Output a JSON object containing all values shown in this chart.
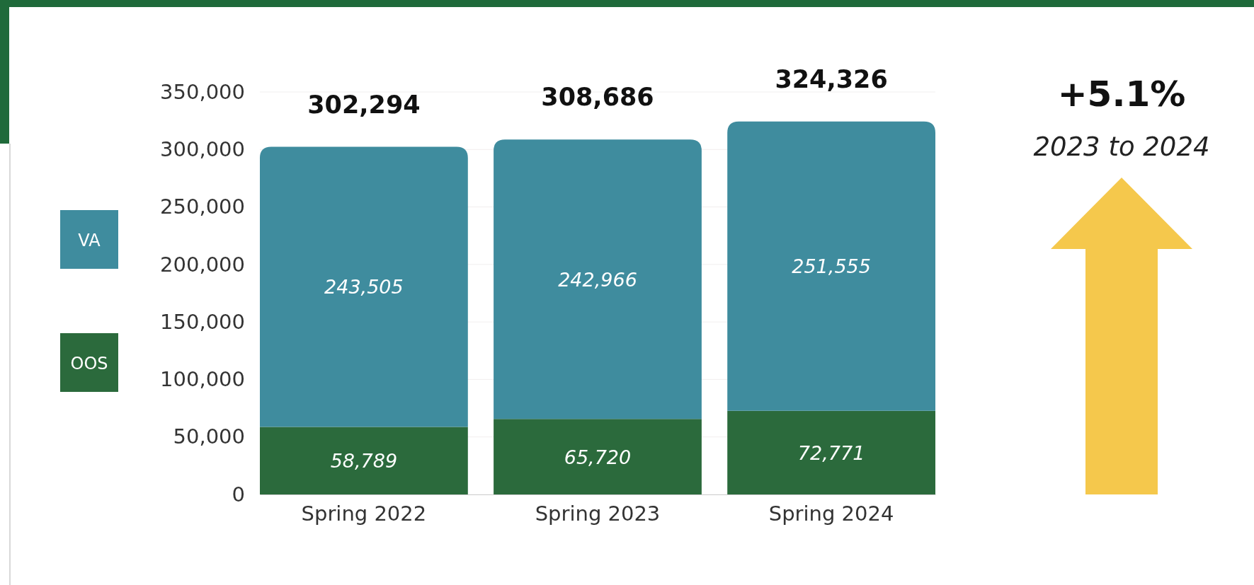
{
  "chart_data": {
    "type": "bar",
    "stacked": true,
    "categories": [
      "Spring 2022",
      "Spring 2023",
      "Spring 2024"
    ],
    "series": [
      {
        "name": "OOS",
        "color": "#2b6a3c",
        "values": [
          58789,
          65720,
          72771
        ],
        "value_labels": [
          "58,789",
          "65,720",
          "72,771"
        ]
      },
      {
        "name": "VA",
        "color": "#3f8c9e",
        "values": [
          243505,
          242966,
          251555
        ],
        "value_labels": [
          "243,505",
          "242,966",
          "251,555"
        ]
      }
    ],
    "ylim": [
      0,
      350000
    ],
    "yticks": [
      {
        "value": 0,
        "label": "0"
      },
      {
        "value": 50000,
        "label": "50,000"
      },
      {
        "value": 100000,
        "label": "100,000"
      },
      {
        "value": 150000,
        "label": "150,000"
      },
      {
        "value": 200000,
        "label": "200,000"
      },
      {
        "value": 250000,
        "label": "250,000"
      },
      {
        "value": 300000,
        "label": "300,000"
      },
      {
        "value": 350000,
        "label": "350,000"
      }
    ],
    "grid": "y",
    "legend": "left",
    "totals": [
      "302,294",
      "308,686",
      "324,326"
    ],
    "annotations": [
      "+5.1%",
      "2023 to 2024"
    ]
  }
}
